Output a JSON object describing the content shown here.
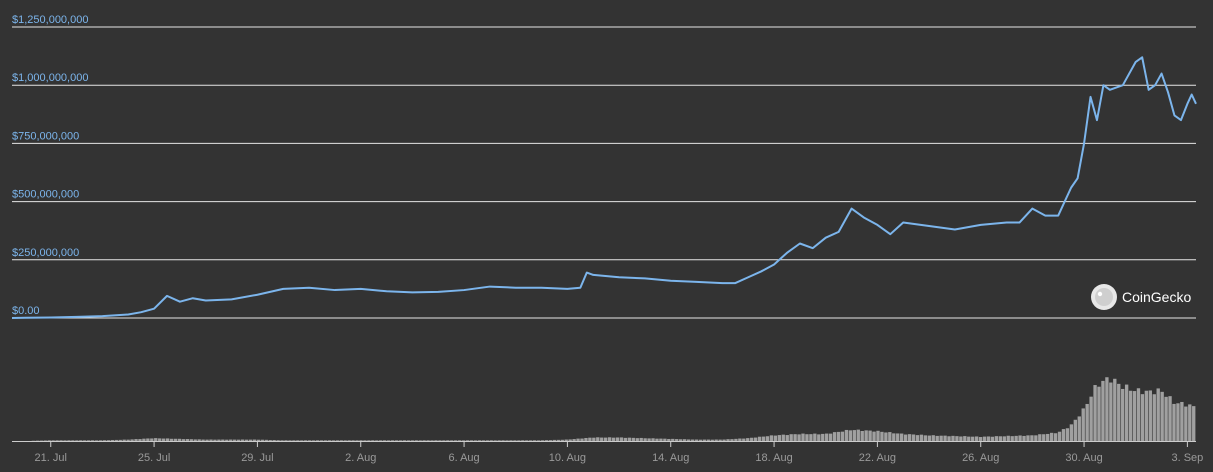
{
  "chart_data": {
    "type": "line",
    "title": "",
    "xlabel": "",
    "ylabel": "",
    "ylim": [
      0,
      1250000000
    ],
    "y_ticks": [
      "$0.00",
      "$250,000,000",
      "$500,000,000",
      "$750,000,000",
      "$1,000,000,000",
      "$1,250,000,000"
    ],
    "y_tick_values": [
      0,
      250000000,
      500000000,
      750000000,
      1000000000,
      1250000000
    ],
    "x_ticks": [
      "21. Jul",
      "25. Jul",
      "29. Jul",
      "2. Aug",
      "6. Aug",
      "10. Aug",
      "14. Aug",
      "18. Aug",
      "22. Aug",
      "26. Aug",
      "30. Aug",
      "3. Sep"
    ],
    "x_tick_values": [
      "2020-07-21",
      "2020-07-25",
      "2020-07-29",
      "2020-08-02",
      "2020-08-06",
      "2020-08-10",
      "2020-08-14",
      "2020-08-18",
      "2020-08-22",
      "2020-08-26",
      "2020-08-30",
      "2020-09-03"
    ],
    "xlim": [
      "2020-07-19T12:00",
      "2020-09-03T08:00"
    ],
    "grid": true,
    "legend": "none",
    "colors": {
      "line": "#7cb5ec",
      "volume": "#a0a0a0",
      "grid": "#e6e6e6",
      "background": "#333333"
    },
    "watermark": "CoinGecko",
    "series": [
      {
        "type": "line",
        "x": [
          "2020-07-19T12:00",
          "2020-07-20T00:00",
          "2020-07-21T00:00",
          "2020-07-22T00:00",
          "2020-07-23T00:00",
          "2020-07-24T00:00",
          "2020-07-24T12:00",
          "2020-07-25T00:00",
          "2020-07-25T12:00",
          "2020-07-26T00:00",
          "2020-07-26T12:00",
          "2020-07-27T00:00",
          "2020-07-28T00:00",
          "2020-07-29T00:00",
          "2020-07-30T00:00",
          "2020-07-31T00:00",
          "2020-08-01T00:00",
          "2020-08-02T00:00",
          "2020-08-03T00:00",
          "2020-08-04T00:00",
          "2020-08-05T00:00",
          "2020-08-06T00:00",
          "2020-08-07T00:00",
          "2020-08-08T00:00",
          "2020-08-09T00:00",
          "2020-08-10T00:00",
          "2020-08-10T12:00",
          "2020-08-10T18:00",
          "2020-08-11T00:00",
          "2020-08-12T00:00",
          "2020-08-13T00:00",
          "2020-08-14T00:00",
          "2020-08-15T00:00",
          "2020-08-16T00:00",
          "2020-08-16T12:00",
          "2020-08-17T00:00",
          "2020-08-17T12:00",
          "2020-08-18T00:00",
          "2020-08-18T12:00",
          "2020-08-19T00:00",
          "2020-08-19T12:00",
          "2020-08-20T00:00",
          "2020-08-20T12:00",
          "2020-08-21T00:00",
          "2020-08-21T12:00",
          "2020-08-22T00:00",
          "2020-08-22T12:00",
          "2020-08-23T00:00",
          "2020-08-24T00:00",
          "2020-08-25T00:00",
          "2020-08-26T00:00",
          "2020-08-27T00:00",
          "2020-08-27T12:00",
          "2020-08-28T00:00",
          "2020-08-28T12:00",
          "2020-08-29T00:00",
          "2020-08-29T06:00",
          "2020-08-29T12:00",
          "2020-08-29T18:00",
          "2020-08-30T00:00",
          "2020-08-30T06:00",
          "2020-08-30T12:00",
          "2020-08-30T18:00",
          "2020-08-31T00:00",
          "2020-08-31T12:00",
          "2020-09-01T00:00",
          "2020-09-01T06:00",
          "2020-09-01T12:00",
          "2020-09-01T18:00",
          "2020-09-02T00:00",
          "2020-09-02T06:00",
          "2020-09-02T12:00",
          "2020-09-02T18:00",
          "2020-09-03T00:00",
          "2020-09-03T04:00",
          "2020-09-03T08:00"
        ],
        "y": [
          0,
          1000000,
          2000000,
          5000000,
          8000000,
          15000000,
          25000000,
          40000000,
          95000000,
          70000000,
          85000000,
          75000000,
          80000000,
          100000000,
          125000000,
          130000000,
          120000000,
          125000000,
          115000000,
          110000000,
          112000000,
          120000000,
          135000000,
          130000000,
          130000000,
          125000000,
          130000000,
          195000000,
          185000000,
          175000000,
          170000000,
          160000000,
          155000000,
          150000000,
          150000000,
          175000000,
          200000000,
          230000000,
          280000000,
          320000000,
          300000000,
          345000000,
          370000000,
          470000000,
          430000000,
          400000000,
          360000000,
          410000000,
          395000000,
          380000000,
          400000000,
          410000000,
          410000000,
          470000000,
          440000000,
          440000000,
          500000000,
          560000000,
          600000000,
          750000000,
          950000000,
          850000000,
          1000000000,
          980000000,
          1000000000,
          1100000000,
          1120000000,
          980000000,
          1000000000,
          1050000000,
          970000000,
          870000000,
          850000000,
          920000000,
          960000000,
          920000000
        ]
      },
      {
        "type": "volume",
        "x": [
          "2020-07-19T12:00",
          "2020-07-20T00:00",
          "2020-07-21T00:00",
          "2020-07-22T00:00",
          "2020-07-23T00:00",
          "2020-07-24T00:00",
          "2020-07-25T00:00",
          "2020-07-26T00:00",
          "2020-07-27T00:00",
          "2020-07-28T00:00",
          "2020-07-29T00:00",
          "2020-07-30T00:00",
          "2020-07-31T00:00",
          "2020-08-01T00:00",
          "2020-08-02T00:00",
          "2020-08-03T00:00",
          "2020-08-04T00:00",
          "2020-08-05T00:00",
          "2020-08-06T00:00",
          "2020-08-07T00:00",
          "2020-08-08T00:00",
          "2020-08-09T00:00",
          "2020-08-10T00:00",
          "2020-08-11T00:00",
          "2020-08-12T00:00",
          "2020-08-13T00:00",
          "2020-08-14T00:00",
          "2020-08-15T00:00",
          "2020-08-16T00:00",
          "2020-08-17T00:00",
          "2020-08-18T00:00",
          "2020-08-19T00:00",
          "2020-08-20T00:00",
          "2020-08-21T00:00",
          "2020-08-22T00:00",
          "2020-08-23T00:00",
          "2020-08-24T00:00",
          "2020-08-25T00:00",
          "2020-08-26T00:00",
          "2020-08-27T00:00",
          "2020-08-28T00:00",
          "2020-08-29T00:00",
          "2020-08-29T12:00",
          "2020-08-30T00:00",
          "2020-08-30T12:00",
          "2020-08-31T00:00",
          "2020-08-31T12:00",
          "2020-09-01T00:00",
          "2020-09-01T12:00",
          "2020-09-02T00:00",
          "2020-09-02T12:00",
          "2020-09-03T00:00",
          "2020-09-03T08:00"
        ],
        "y": [
          0.0,
          0.0,
          0.01,
          0.01,
          0.01,
          0.02,
          0.04,
          0.03,
          0.02,
          0.02,
          0.02,
          0.01,
          0.01,
          0.01,
          0.01,
          0.01,
          0.01,
          0.01,
          0.01,
          0.01,
          0.01,
          0.01,
          0.02,
          0.05,
          0.05,
          0.04,
          0.03,
          0.02,
          0.02,
          0.04,
          0.08,
          0.1,
          0.1,
          0.16,
          0.14,
          0.1,
          0.08,
          0.07,
          0.06,
          0.07,
          0.08,
          0.12,
          0.22,
          0.45,
          0.8,
          0.9,
          0.78,
          0.72,
          0.7,
          0.72,
          0.55,
          0.52,
          0.48
        ]
      }
    ]
  }
}
